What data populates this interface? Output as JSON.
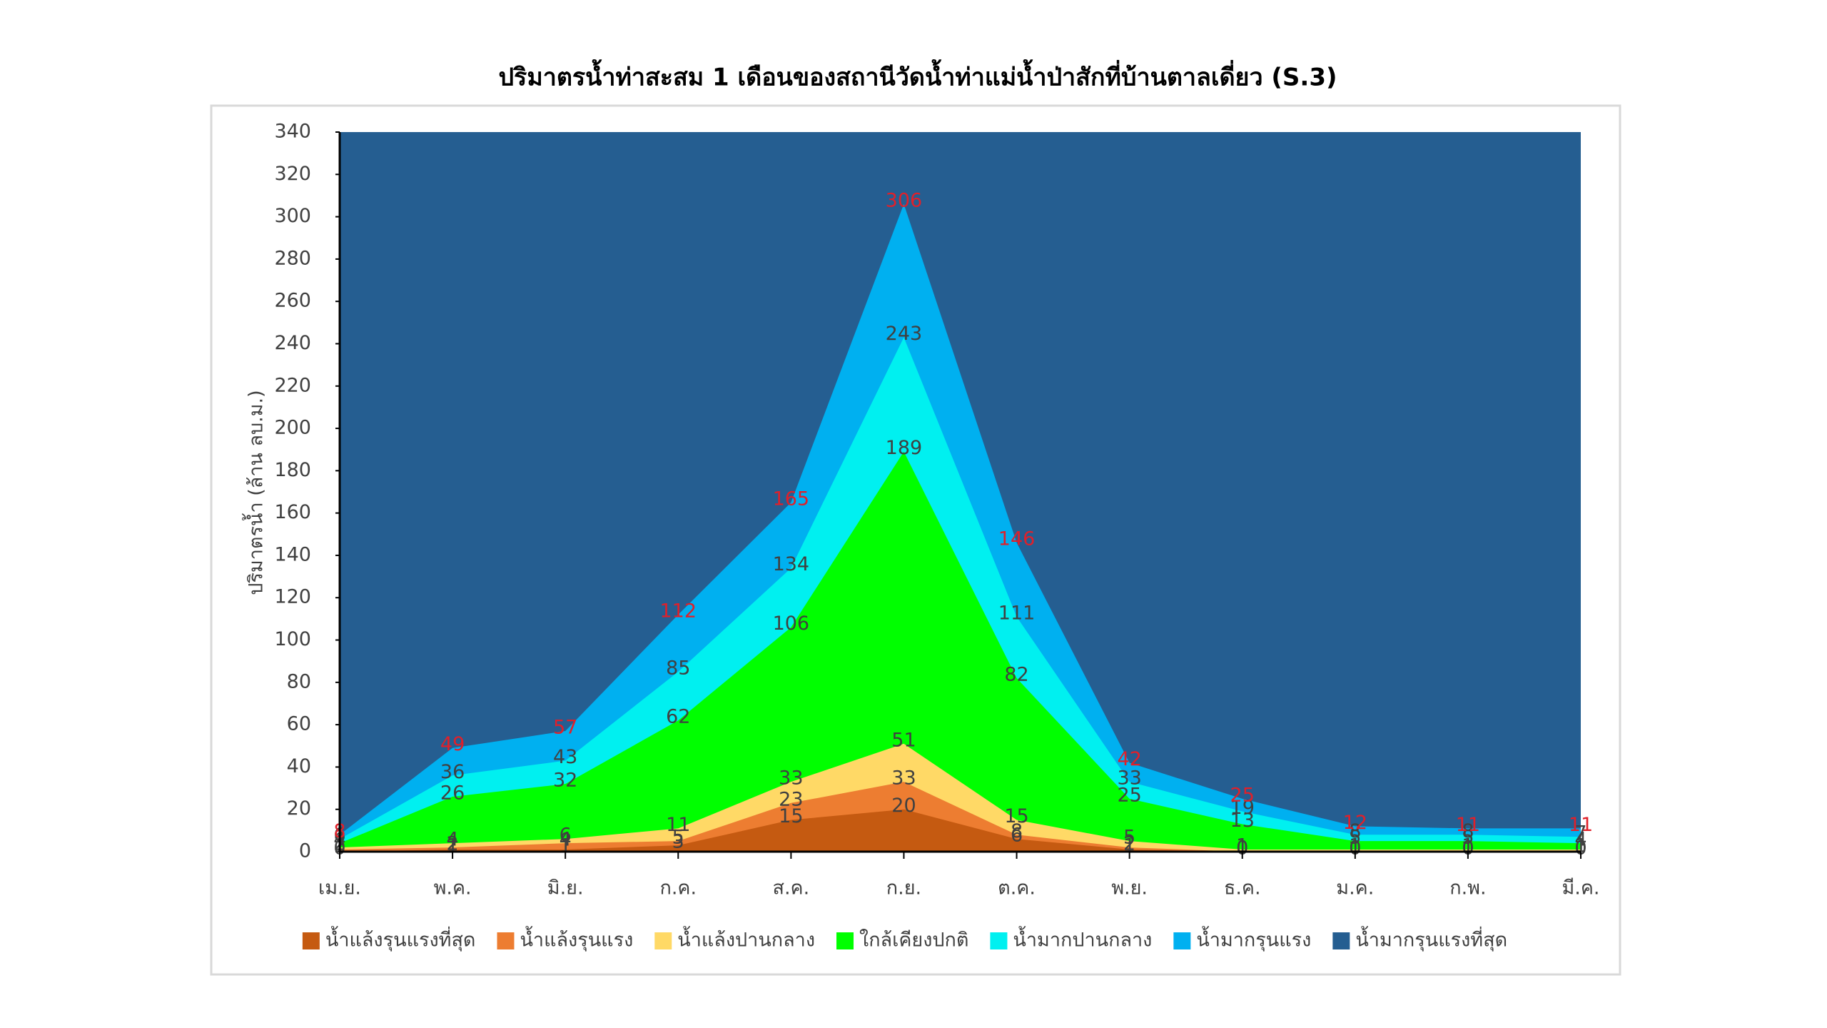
{
  "chart_data": {
    "type": "area",
    "title": "ปริมาตรน้ำท่าสะสม 1 เดือนของสถานีวัดน้ำท่าแม่น้ำป่าสักที่บ้านตาลเดี่ยว (S.3)",
    "y_label": "ปริมาตรน้ำ (ล้าน ลบ.ม.)",
    "categories": [
      "เม.ย.",
      "พ.ค.",
      "มิ.ย.",
      "ก.ค.",
      "ส.ค.",
      "ก.ย.",
      "ต.ค.",
      "พ.ย.",
      "ธ.ค.",
      "ม.ค.",
      "ก.พ.",
      "มี.ค."
    ],
    "ylim": [
      0,
      340
    ],
    "yticks": [
      0,
      20,
      40,
      60,
      80,
      100,
      120,
      140,
      160,
      180,
      200,
      220,
      240,
      260,
      280,
      300,
      320,
      340
    ],
    "series": [
      {
        "name": "น้ำแล้งรุนแรงที่สุด",
        "color": "#c55a11",
        "label_color": "#404040",
        "values": [
          0,
          1,
          1,
          3,
          15,
          20,
          6,
          1,
          0,
          0,
          0,
          0
        ]
      },
      {
        "name": "น้ำแล้งรุนแรง",
        "color": "#ed7d31",
        "label_color": "#404040",
        "values": [
          1,
          2,
          4,
          5,
          23,
          33,
          8,
          2,
          0,
          0,
          0,
          0
        ]
      },
      {
        "name": "น้ำแล้งปานกลาง",
        "color": "#ffd966",
        "label_color": "#404040",
        "values": [
          2,
          4,
          6,
          11,
          33,
          51,
          15,
          5,
          1,
          1,
          1,
          1
        ]
      },
      {
        "name": "ใกล้เคียงปกติ",
        "color": "#00ff00",
        "label_color": "#404040",
        "values": [
          4,
          26,
          32,
          62,
          106,
          189,
          82,
          25,
          13,
          5,
          5,
          4
        ]
      },
      {
        "name": "น้ำมากปานกลาง",
        "color": "#00f0f0",
        "label_color": "#404040",
        "values": [
          6,
          36,
          43,
          85,
          134,
          243,
          111,
          33,
          19,
          8,
          8,
          7
        ]
      },
      {
        "name": "น้ำมากรุนแรง",
        "color": "#00b0f0",
        "label_color": "#e0202a",
        "values": [
          8,
          49,
          57,
          112,
          165,
          306,
          146,
          42,
          25,
          12,
          11,
          11
        ]
      },
      {
        "name": "น้ำมากรุนแรงที่สุด",
        "color": "#255e91"
      }
    ]
  }
}
